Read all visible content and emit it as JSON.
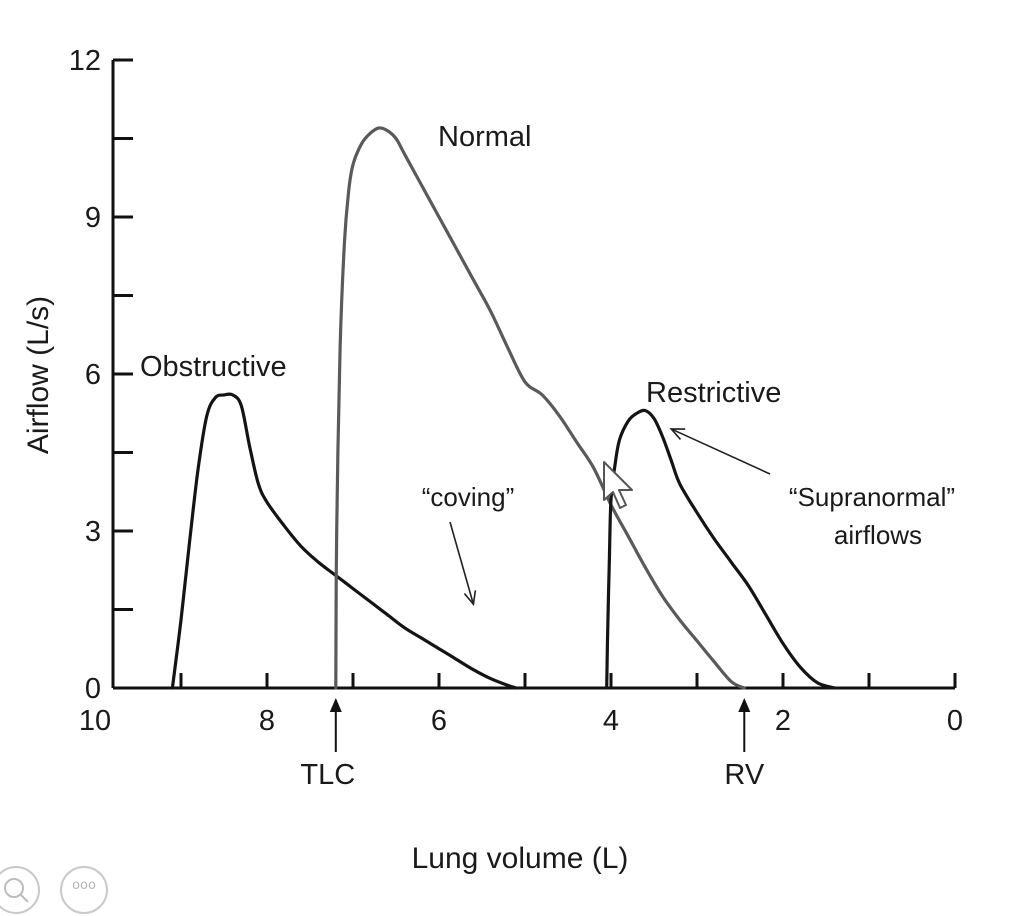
{
  "chart_data": {
    "type": "line",
    "title": "",
    "xlabel": "Lung volume (L)",
    "ylabel": "Airflow (L/s)",
    "xlim": [
      10,
      0
    ],
    "ylim": [
      0,
      12
    ],
    "x_axis_reversed": true,
    "grid": false,
    "legend": "none",
    "x_ticks": [
      10,
      8,
      6,
      4,
      2,
      0
    ],
    "x_minor_ticks": [
      9,
      7,
      5,
      3,
      1
    ],
    "y_ticks": [
      0,
      3,
      6,
      9,
      12
    ],
    "y_minor_ticks": [
      1.5,
      4.5,
      7.5,
      10.5
    ],
    "series": [
      {
        "name": "Obstructive",
        "color": "#141414",
        "x": [
          9.1,
          9.0,
          8.9,
          8.8,
          8.7,
          8.6,
          8.5,
          8.4,
          8.3,
          8.2,
          8.1,
          8.0,
          7.8,
          7.6,
          7.4,
          7.2,
          7.0,
          6.8,
          6.6,
          6.4,
          6.2,
          6.0,
          5.8,
          5.6,
          5.4,
          5.2,
          5.1
        ],
        "y": [
          0.0,
          1.3,
          2.8,
          4.2,
          5.2,
          5.55,
          5.6,
          5.6,
          5.4,
          4.6,
          3.9,
          3.55,
          3.1,
          2.7,
          2.4,
          2.15,
          1.9,
          1.65,
          1.4,
          1.15,
          0.95,
          0.75,
          0.55,
          0.35,
          0.18,
          0.05,
          0.0
        ]
      },
      {
        "name": "Normal",
        "color": "#5a5a5a",
        "x": [
          7.2,
          7.19,
          7.15,
          7.1,
          7.05,
          7.0,
          6.9,
          6.8,
          6.7,
          6.6,
          6.5,
          6.4,
          6.2,
          6.0,
          5.8,
          5.6,
          5.4,
          5.2,
          5.0,
          4.8,
          4.6,
          4.4,
          4.2,
          4.0,
          3.8,
          3.6,
          3.4,
          3.2,
          3.0,
          2.8,
          2.6,
          2.45
        ],
        "y": [
          0.0,
          3.0,
          6.5,
          8.5,
          9.5,
          10.0,
          10.4,
          10.6,
          10.7,
          10.65,
          10.5,
          10.2,
          9.6,
          9.0,
          8.4,
          7.8,
          7.2,
          6.5,
          5.85,
          5.6,
          5.2,
          4.7,
          4.2,
          3.5,
          2.9,
          2.3,
          1.75,
          1.3,
          0.9,
          0.5,
          0.12,
          0.0
        ]
      },
      {
        "name": "Restrictive",
        "color": "#141414",
        "x": [
          4.05,
          4.04,
          4.02,
          4.0,
          3.95,
          3.9,
          3.8,
          3.7,
          3.6,
          3.5,
          3.4,
          3.3,
          3.2,
          3.0,
          2.8,
          2.6,
          2.4,
          2.2,
          2.0,
          1.8,
          1.6,
          1.4
        ],
        "y": [
          0.0,
          1.0,
          2.4,
          3.6,
          4.3,
          4.75,
          5.1,
          5.25,
          5.3,
          5.15,
          4.8,
          4.35,
          3.9,
          3.35,
          2.85,
          2.4,
          1.95,
          1.4,
          0.85,
          0.4,
          0.1,
          0.0
        ]
      }
    ],
    "labels": {
      "obstructive": "Obstructive",
      "normal": "Normal",
      "restrictive": "Restrictive",
      "coving": "“coving”",
      "supranormal_line1": "“Supranormal”",
      "supranormal_line2": "airflows",
      "tlc": "TLC",
      "rv": "RV"
    },
    "markers": [
      {
        "name": "TLC",
        "x": 7.2
      },
      {
        "name": "RV",
        "x": 2.45
      }
    ],
    "annotation_arrows": [
      {
        "label": "coving",
        "target_x": 5.6,
        "target_y": 1.6
      },
      {
        "label": "Supranormal",
        "target_x": 3.3,
        "target_y": 4.95
      }
    ]
  },
  "viewer_controls": {
    "zoom_icon": "magnifier-icon",
    "more_icon": "more-options-icon",
    "more_text": "ooo"
  }
}
